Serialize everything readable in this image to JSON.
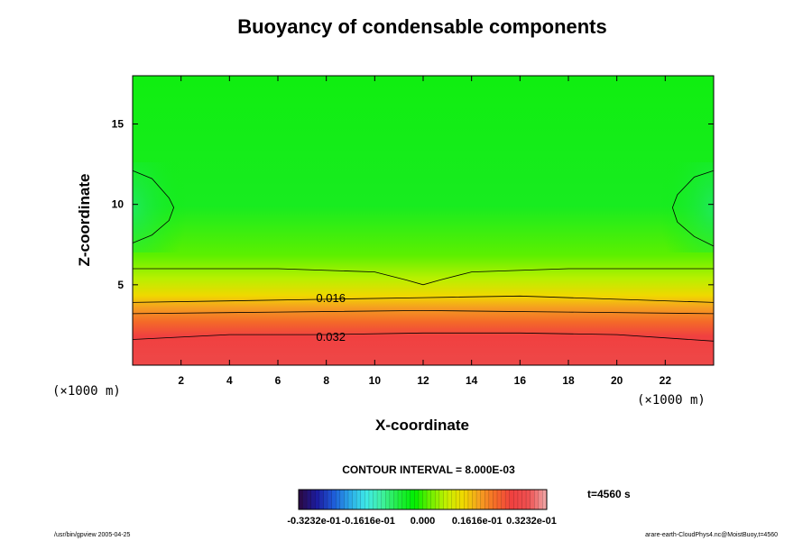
{
  "chart_data": {
    "type": "heatmap",
    "title": "Buoyancy of condensable components",
    "xlabel": "X-coordinate",
    "ylabel": "Z-coordinate",
    "x_unit": "(×1000 m)",
    "y_unit": "(×1000 m)",
    "xlim": [
      0,
      24
    ],
    "ylim": [
      0,
      18
    ],
    "x_ticks": [
      2,
      4,
      6,
      8,
      10,
      12,
      14,
      16,
      18,
      20,
      22
    ],
    "y_ticks": [
      5,
      10,
      15
    ],
    "contour_interval_text": "CONTOUR INTERVAL = 8.000E-03",
    "time_text": "t=4560 s",
    "colorbar": {
      "range": [
        -0.03232,
        0.03232
      ],
      "tick_labels": [
        "-0.3232e-01",
        "-0.1616e-01",
        "0.000",
        "0.1616e-01",
        "0.3232e-01"
      ]
    },
    "contour_labels": [
      {
        "text": "0.016",
        "x": 8.0,
        "z": 4.2
      },
      {
        "text": "0.032",
        "x": 8.0,
        "z": 1.8
      }
    ],
    "contours": [
      {
        "level": 0.032,
        "points": [
          [
            0,
            1.6
          ],
          [
            4,
            1.9
          ],
          [
            8,
            1.9
          ],
          [
            12,
            2.0
          ],
          [
            16,
            2.0
          ],
          [
            20,
            1.9
          ],
          [
            24,
            1.5
          ]
        ]
      },
      {
        "level": 0.024,
        "points": [
          [
            0,
            3.2
          ],
          [
            6,
            3.3
          ],
          [
            12,
            3.4
          ],
          [
            18,
            3.3
          ],
          [
            24,
            3.2
          ]
        ]
      },
      {
        "level": 0.016,
        "points": [
          [
            0,
            3.9
          ],
          [
            4,
            4.0
          ],
          [
            8,
            4.1
          ],
          [
            12,
            4.2
          ],
          [
            16,
            4.3
          ],
          [
            20,
            4.1
          ],
          [
            24,
            3.9
          ]
        ]
      },
      {
        "level": 0.008,
        "points": [
          [
            0,
            6.0
          ],
          [
            6,
            6.0
          ],
          [
            10,
            5.8
          ],
          [
            11.3,
            5.3
          ],
          [
            12,
            5.0
          ],
          [
            12.7,
            5.3
          ],
          [
            14,
            5.8
          ],
          [
            18,
            6.0
          ],
          [
            24,
            6.0
          ]
        ]
      },
      {
        "level": 0.0,
        "points": [
          [
            0,
            12.1
          ],
          [
            0.8,
            11.6
          ],
          [
            1.5,
            10.4
          ],
          [
            1.7,
            9.8
          ],
          [
            1.5,
            9.0
          ],
          [
            0.8,
            8.1
          ],
          [
            0,
            7.6
          ]
        ]
      },
      {
        "level": 0.0,
        "points": [
          [
            24,
            12.1
          ],
          [
            23.2,
            11.7
          ],
          [
            22.5,
            10.6
          ],
          [
            22.3,
            9.8
          ],
          [
            22.5,
            8.9
          ],
          [
            23.2,
            8.0
          ],
          [
            24,
            7.4
          ]
        ]
      }
    ],
    "colormap": [
      "#2a0a4a",
      "#1c1ca0",
      "#1e5ad8",
      "#2aa8e8",
      "#3ee8e8",
      "#40f0a0",
      "#20ee40",
      "#00ee00",
      "#70f000",
      "#c8f000",
      "#f0d800",
      "#f5a020",
      "#f56a28",
      "#f04040",
      "#ee5050",
      "#f0a0a0"
    ]
  },
  "footer": {
    "left": "/usr/bin/gpview 2005-04-25",
    "right": "arare-earth-CloudPhys4.nc@MoistBuoy,t=4560"
  }
}
